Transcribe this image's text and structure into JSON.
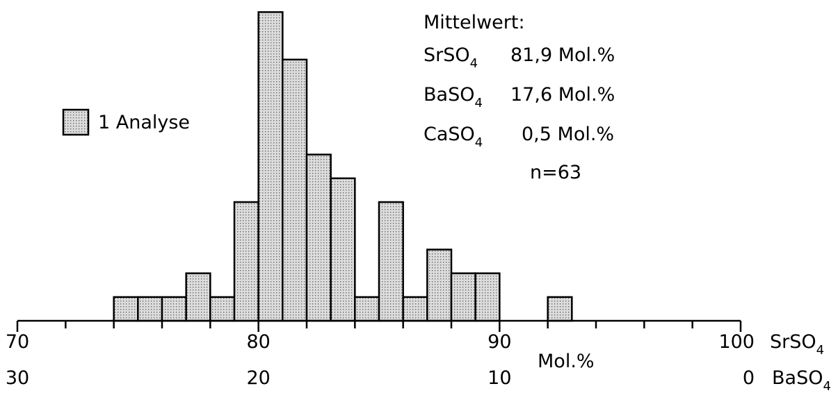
{
  "chart_data": {
    "type": "histogram",
    "bin_width": 1,
    "bins": [
      {
        "x0": 74,
        "x1": 75,
        "count": 1
      },
      {
        "x0": 75,
        "x1": 76,
        "count": 1
      },
      {
        "x0": 76,
        "x1": 77,
        "count": 1
      },
      {
        "x0": 77,
        "x1": 78,
        "count": 2
      },
      {
        "x0": 78,
        "x1": 79,
        "count": 1
      },
      {
        "x0": 79,
        "x1": 80,
        "count": 5
      },
      {
        "x0": 80,
        "x1": 81,
        "count": 13
      },
      {
        "x0": 81,
        "x1": 82,
        "count": 11
      },
      {
        "x0": 82,
        "x1": 83,
        "count": 7
      },
      {
        "x0": 83,
        "x1": 84,
        "count": 6
      },
      {
        "x0": 84,
        "x1": 85,
        "count": 1
      },
      {
        "x0": 85,
        "x1": 86,
        "count": 5
      },
      {
        "x0": 86,
        "x1": 87,
        "count": 1
      },
      {
        "x0": 87,
        "x1": 88,
        "count": 3
      },
      {
        "x0": 88,
        "x1": 89,
        "count": 2
      },
      {
        "x0": 89,
        "x1": 90,
        "count": 2
      },
      {
        "x0": 92,
        "x1": 93,
        "count": 1
      }
    ],
    "xlim": [
      70,
      100
    ],
    "ylim": [
      0,
      13
    ],
    "x_ticks_top": [
      {
        "value": 70,
        "label": "70"
      },
      {
        "value": 80,
        "label": "80"
      },
      {
        "value": 90,
        "label": "90"
      },
      {
        "value": 100,
        "label": "100"
      }
    ],
    "x_ticks_bottom": [
      {
        "value": 70,
        "label": "30"
      },
      {
        "value": 80,
        "label": "20"
      },
      {
        "value": 90,
        "label": "10"
      },
      {
        "value": 100,
        "label": "0"
      }
    ],
    "axis_label_top": "SrSO",
    "axis_label_top_sub": "4",
    "axis_label_bottom": "BaSO",
    "axis_label_bottom_sub": "4",
    "xlabel": "Mol.%",
    "legend": {
      "label": "1 Analyse",
      "placement": "left"
    },
    "annotation": {
      "heading": "Mittelwert:",
      "rows": [
        {
          "formula": "SrSO",
          "sub": "4",
          "value": "81,9 Mol.%"
        },
        {
          "formula": "BaSO",
          "sub": "4",
          "value": "17,6 Mol.%"
        },
        {
          "formula": "CaSO",
          "sub": "4",
          "value": "0,5 Mol.%"
        }
      ],
      "n": "n=63"
    },
    "colors": {
      "fill": "#dcdcdc",
      "dots": "#5a5a5a",
      "stroke": "#000000"
    }
  }
}
